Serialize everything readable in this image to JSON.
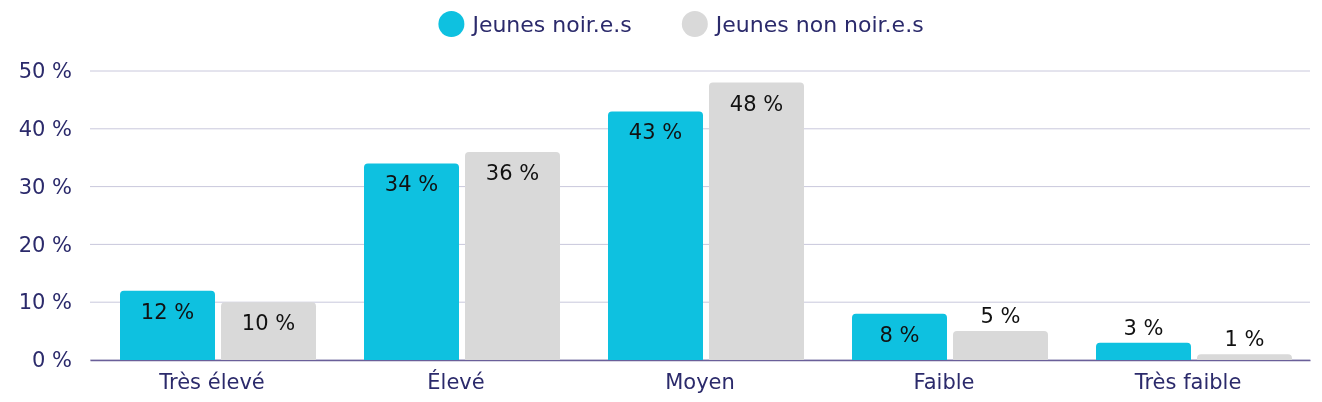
{
  "chart_data": {
    "type": "bar",
    "categories": [
      "Très élevé",
      "Élevé",
      "Moyen",
      "Faible",
      "Très faible"
    ],
    "series": [
      {
        "name": "Jeunes noir.e.s",
        "color": "#0ec1e0",
        "values": [
          12,
          34,
          43,
          8,
          3
        ],
        "value_labels": [
          "12 %",
          "34 %",
          "43 %",
          "8 %",
          "3 %"
        ]
      },
      {
        "name": "Jeunes non noir.e.s",
        "color": "#d9d9d9",
        "values": [
          10,
          36,
          48,
          5,
          1
        ],
        "value_labels": [
          "10 %",
          "36 %",
          "48 %",
          "5 %",
          "1 %"
        ]
      }
    ],
    "ylim": [
      0,
      50
    ],
    "yticks": [
      {
        "value": 0,
        "label": "0 %"
      },
      {
        "value": 10,
        "label": "10 %"
      },
      {
        "value": 20,
        "label": "20 %"
      },
      {
        "value": 30,
        "label": "30 %"
      },
      {
        "value": 40,
        "label": "40 %"
      },
      {
        "value": 50,
        "label": "50 %"
      }
    ],
    "grid": "y",
    "legend": "top"
  }
}
